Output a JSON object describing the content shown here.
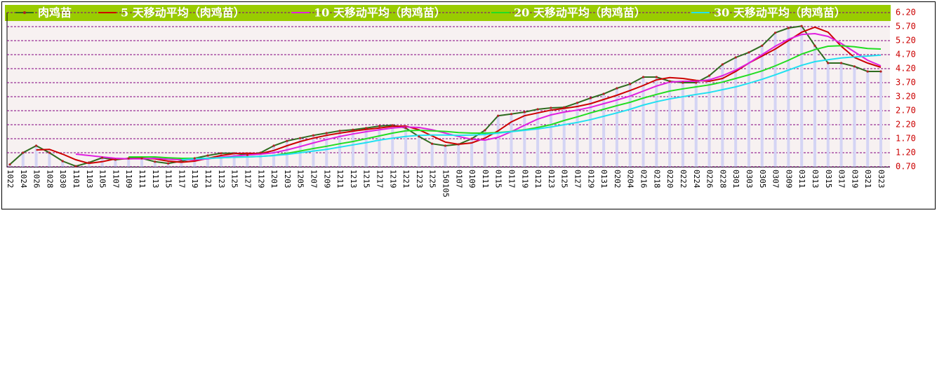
{
  "chart_data": {
    "type": "line",
    "categories": [
      "1022",
      "1024",
      "1026",
      "1028",
      "1030",
      "1101",
      "1103",
      "1105",
      "1107",
      "1109",
      "1111",
      "1113",
      "1115",
      "1117",
      "1119",
      "1121",
      "1123",
      "1125",
      "1127",
      "1129",
      "1201",
      "1203",
      "1205",
      "1207",
      "1209",
      "1211",
      "1213",
      "1215",
      "1217",
      "1219",
      "1221",
      "1223",
      "1225",
      "150105",
      "0107",
      "0109",
      "0111",
      "0115",
      "0117",
      "0119",
      "0121",
      "0123",
      "0125",
      "0127",
      "0129",
      "0131",
      "0202",
      "0204",
      "0216",
      "0218",
      "0220",
      "0222",
      "0224",
      "0226",
      "0228",
      "0301",
      "0303",
      "0305",
      "0307",
      "0309",
      "0311",
      "0313",
      "0315",
      "0317",
      "0319",
      "0321",
      "0323"
    ],
    "series": [
      {
        "name": "肉鸡苗",
        "color": "#2f6b1f",
        "marker_color": "#b22222",
        "bar_color": "#d4d4f4",
        "values": [
          0.78,
          1.2,
          1.45,
          1.2,
          0.9,
          0.72,
          0.85,
          1.02,
          0.95,
          1.0,
          1.0,
          0.88,
          0.82,
          0.9,
          1.0,
          1.1,
          1.18,
          1.18,
          1.12,
          1.2,
          1.45,
          1.62,
          1.72,
          1.82,
          1.9,
          1.98,
          2.02,
          2.08,
          2.15,
          2.18,
          2.08,
          1.78,
          1.52,
          1.45,
          1.5,
          1.7,
          2.0,
          2.52,
          2.58,
          2.65,
          2.75,
          2.8,
          2.82,
          2.98,
          3.15,
          3.3,
          3.5,
          3.65,
          3.9,
          3.9,
          3.75,
          3.7,
          3.7,
          3.95,
          4.35,
          4.6,
          4.78,
          5.02,
          5.48,
          5.65,
          5.72,
          5.02,
          4.4,
          4.4,
          4.28,
          4.1,
          4.1
        ]
      },
      {
        "name": "5 天移动平均（肉鸡苗）",
        "color": "#cc0000",
        "values": [
          null,
          null,
          1.3,
          1.32,
          1.15,
          0.95,
          0.82,
          0.88,
          0.98,
          0.98,
          1.0,
          0.98,
          0.9,
          0.86,
          0.9,
          1.0,
          1.1,
          1.17,
          1.18,
          1.17,
          1.28,
          1.45,
          1.6,
          1.72,
          1.82,
          1.9,
          1.97,
          2.03,
          2.08,
          2.14,
          2.15,
          2.02,
          1.8,
          1.58,
          1.5,
          1.55,
          1.72,
          1.98,
          2.3,
          2.52,
          2.62,
          2.72,
          2.78,
          2.85,
          2.95,
          3.1,
          3.25,
          3.42,
          3.6,
          3.8,
          3.88,
          3.85,
          3.78,
          3.75,
          3.85,
          4.1,
          4.4,
          4.65,
          4.9,
          5.2,
          5.5,
          5.68,
          5.5,
          5.0,
          4.6,
          4.4,
          4.25
        ]
      },
      {
        "name": "10 天移动平均（肉鸡苗）",
        "color": "#e020e0",
        "values": [
          null,
          null,
          null,
          null,
          null,
          1.15,
          1.1,
          1.05,
          1.0,
          0.98,
          0.98,
          1.0,
          0.97,
          0.95,
          0.95,
          0.98,
          1.04,
          1.08,
          1.12,
          1.15,
          1.2,
          1.3,
          1.42,
          1.55,
          1.67,
          1.78,
          1.87,
          1.95,
          2.02,
          2.08,
          2.12,
          2.1,
          2.02,
          1.9,
          1.78,
          1.68,
          1.65,
          1.75,
          1.95,
          2.18,
          2.4,
          2.55,
          2.65,
          2.72,
          2.82,
          2.95,
          3.08,
          3.22,
          3.4,
          3.58,
          3.72,
          3.75,
          3.75,
          3.8,
          3.95,
          4.15,
          4.4,
          4.7,
          5.0,
          5.25,
          5.42,
          5.45,
          5.35,
          5.1,
          4.8,
          4.5,
          4.3
        ]
      },
      {
        "name": "20 天移动平均（肉鸡苗）",
        "color": "#22dd22",
        "values": [
          null,
          null,
          null,
          null,
          null,
          null,
          null,
          null,
          null,
          1.05,
          1.05,
          1.05,
          1.02,
          1.0,
          1.0,
          1.0,
          1.02,
          1.04,
          1.05,
          1.07,
          1.1,
          1.18,
          1.26,
          1.35,
          1.43,
          1.52,
          1.6,
          1.7,
          1.8,
          1.9,
          1.98,
          2.0,
          1.98,
          1.96,
          1.92,
          1.9,
          1.9,
          1.92,
          1.96,
          2.02,
          2.1,
          2.2,
          2.35,
          2.48,
          2.62,
          2.75,
          2.88,
          3.0,
          3.15,
          3.28,
          3.4,
          3.48,
          3.55,
          3.62,
          3.72,
          3.85,
          3.98,
          4.12,
          4.3,
          4.5,
          4.72,
          4.88,
          5.0,
          5.02,
          4.98,
          4.92,
          4.9
        ]
      },
      {
        "name": "30 天移动平均（肉鸡苗）",
        "color": "#22e0f0",
        "values": [
          null,
          null,
          null,
          null,
          null,
          null,
          null,
          null,
          null,
          null,
          null,
          null,
          null,
          0.95,
          0.98,
          1.0,
          1.02,
          1.04,
          1.05,
          1.07,
          1.1,
          1.14,
          1.2,
          1.26,
          1.32,
          1.4,
          1.48,
          1.56,
          1.65,
          1.72,
          1.78,
          1.82,
          1.83,
          1.83,
          1.82,
          1.83,
          1.85,
          1.9,
          1.95,
          2.0,
          2.05,
          2.12,
          2.2,
          2.28,
          2.38,
          2.5,
          2.62,
          2.75,
          2.9,
          3.02,
          3.12,
          3.2,
          3.28,
          3.35,
          3.45,
          3.55,
          3.68,
          3.82,
          3.98,
          4.15,
          4.32,
          4.45,
          4.52,
          4.58,
          4.62,
          4.65,
          4.68
        ]
      }
    ],
    "ylim": [
      0.7,
      6.2
    ],
    "yticks": [
      {
        "value": 6.2,
        "label": "6.20"
      },
      {
        "value": 5.7,
        "label": "5.70"
      },
      {
        "value": 5.2,
        "label": "5.20"
      },
      {
        "value": 4.7,
        "label": "4.70"
      },
      {
        "value": 4.2,
        "label": "4.20"
      },
      {
        "value": 3.7,
        "label": "3.70"
      },
      {
        "value": 3.2,
        "label": "3.20"
      },
      {
        "value": 2.7,
        "label": "2.70"
      },
      {
        "value": 2.2,
        "label": "2.20"
      },
      {
        "value": 1.7,
        "label": "1.70"
      },
      {
        "value": 1.2,
        "label": "1.20"
      },
      {
        "value": 0.7,
        "label": "0.70"
      }
    ],
    "grid": true,
    "grid_color": "#800080",
    "legend": "top"
  }
}
